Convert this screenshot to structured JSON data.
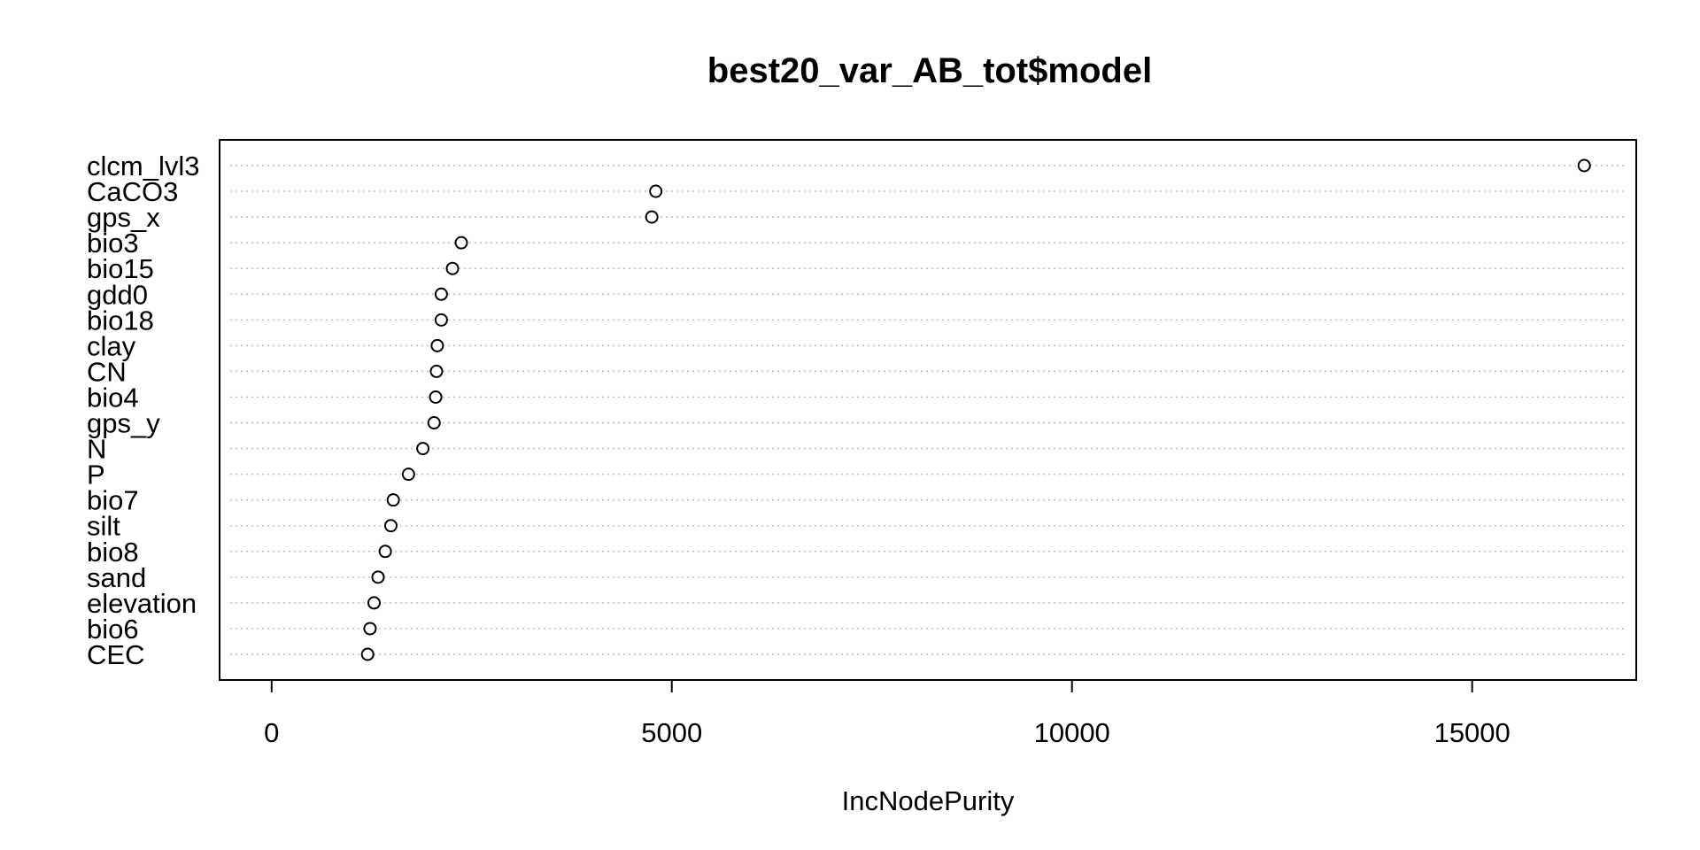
{
  "chart_data": {
    "type": "scatter",
    "subtype": "dotchart",
    "title": "best20_var_AB_tot$model",
    "xlabel": "IncNodePurity",
    "ylabel": "",
    "xlim": [
      -650,
      17050
    ],
    "xticks": [
      0,
      5000,
      10000,
      15000
    ],
    "xtick_labels": [
      "0",
      "5000",
      "10000",
      "15000"
    ],
    "grid": "dotted horizontal lines per category",
    "legend": "none",
    "marker": "open circle",
    "categories": [
      "clcm_lvl3",
      "CaCO3",
      "gps_x",
      "bio3",
      "bio15",
      "gdd0",
      "bio18",
      "clay",
      "CN",
      "bio4",
      "gps_y",
      "N",
      "P",
      "bio7",
      "silt",
      "bio8",
      "sand",
      "elevation",
      "bio6",
      "CEC"
    ],
    "values": [
      16400,
      4800,
      4750,
      2370,
      2260,
      2120,
      2120,
      2070,
      2060,
      2050,
      2030,
      1890,
      1710,
      1520,
      1490,
      1420,
      1330,
      1280,
      1230,
      1200
    ]
  },
  "colors": {
    "background": "#ffffff",
    "axis": "#000000",
    "grid": "#bebebe",
    "marker_stroke": "#000000"
  }
}
